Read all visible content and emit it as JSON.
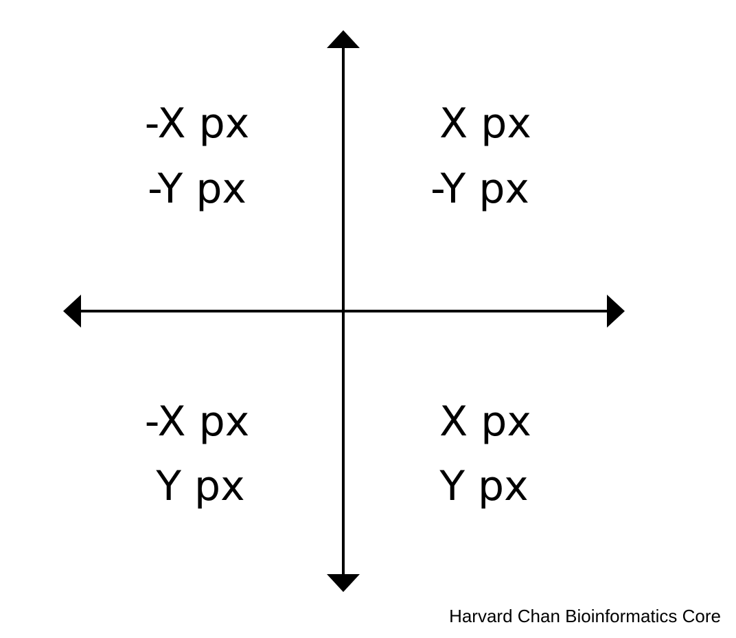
{
  "quadrants": {
    "top_left": {
      "line1": "-X px",
      "line2": "-Y px"
    },
    "top_right": {
      "line1": "X px",
      "line2": "-Y px"
    },
    "bottom_left": {
      "line1": "-X px",
      "line2": "Y px"
    },
    "bottom_right": {
      "line1": "X px",
      "line2": "Y px"
    }
  },
  "credit": "Harvard Chan Bioinformatics Core",
  "colors": {
    "ink": "#000000",
    "background": "#ffffff"
  }
}
